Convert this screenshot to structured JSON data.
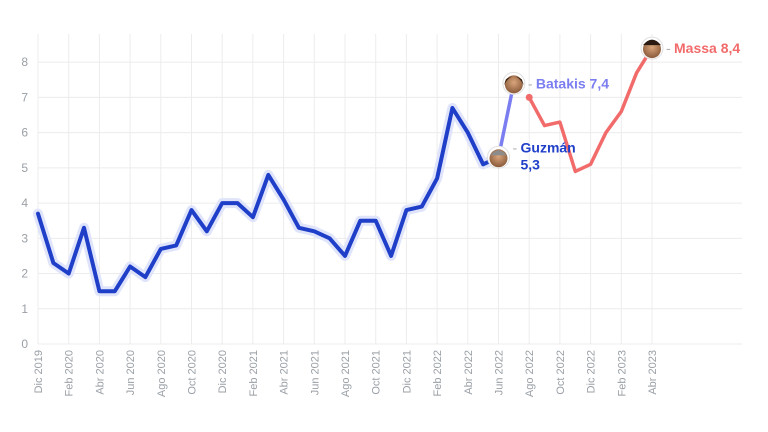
{
  "chart_data": {
    "type": "line",
    "title": "",
    "xlabel": "",
    "ylabel": "",
    "ylim": [
      0,
      8.8
    ],
    "yticks": [
      0,
      1,
      2,
      3,
      4,
      5,
      6,
      7,
      8
    ],
    "grid": true,
    "x_labels": [
      "Dic 2019",
      "Feb 2020",
      "Abr 2020",
      "Jun 2020",
      "Ago 2020",
      "Oct 2020",
      "Dic 2020",
      "Feb 2021",
      "Abr 2021",
      "Jun 2021",
      "Ago 2021",
      "Oct 2021",
      "Dic 2021",
      "Feb 2022",
      "Abr 2022",
      "Jun 2022",
      "Ago 2022",
      "Oct 2022",
      "Dic 2022",
      "Feb 2023",
      "Abr 2023"
    ],
    "x_months": [
      "Dic 2019",
      "Ene 2020",
      "Feb 2020",
      "Mar 2020",
      "Abr 2020",
      "May 2020",
      "Jun 2020",
      "Jul 2020",
      "Ago 2020",
      "Sep 2020",
      "Oct 2020",
      "Nov 2020",
      "Dic 2020",
      "Ene 2021",
      "Feb 2021",
      "Mar 2021",
      "Abr 2021",
      "May 2021",
      "Jun 2021",
      "Jul 2021",
      "Ago 2021",
      "Sep 2021",
      "Oct 2021",
      "Nov 2021",
      "Dic 2021",
      "Ene 2022",
      "Feb 2022",
      "Mar 2022",
      "Abr 2022",
      "May 2022",
      "Jun 2022",
      "Jul 2022",
      "Ago 2022",
      "Sep 2022",
      "Oct 2022",
      "Nov 2022",
      "Dic 2022",
      "Ene 2023",
      "Feb 2023",
      "Mar 2023",
      "Abr 2023"
    ],
    "series": [
      {
        "name": "Guzmán",
        "color": "#1f3fc9",
        "x": [
          "Dic 2019",
          "Ene 2020",
          "Feb 2020",
          "Mar 2020",
          "Abr 2020",
          "May 2020",
          "Jun 2020",
          "Jul 2020",
          "Ago 2020",
          "Sep 2020",
          "Oct 2020",
          "Nov 2020",
          "Dic 2020",
          "Ene 2021",
          "Feb 2021",
          "Mar 2021",
          "Abr 2021",
          "May 2021",
          "Jun 2021",
          "Jul 2021",
          "Ago 2021",
          "Sep 2021",
          "Oct 2021",
          "Nov 2021",
          "Dic 2021",
          "Ene 2022",
          "Feb 2022",
          "Mar 2022",
          "Abr 2022",
          "May 2022",
          "Jun 2022"
        ],
        "values": [
          3.7,
          2.3,
          2.0,
          3.3,
          1.5,
          1.5,
          2.2,
          1.9,
          2.7,
          2.8,
          3.8,
          3.2,
          4.0,
          4.0,
          3.6,
          4.8,
          4.1,
          3.3,
          3.2,
          3.0,
          2.5,
          3.5,
          3.5,
          2.5,
          3.8,
          3.9,
          4.7,
          6.7,
          6.0,
          5.1,
          5.3
        ]
      },
      {
        "name": "Batakis",
        "color": "#7b7ef0",
        "x": [
          "Jun 2022",
          "Jul 2022"
        ],
        "values": [
          5.3,
          7.4
        ]
      },
      {
        "name": "Massa",
        "color": "#f26b6b",
        "x": [
          "Ago 2022",
          "Sep 2022",
          "Oct 2022",
          "Nov 2022",
          "Dic 2022",
          "Ene 2023",
          "Feb 2023",
          "Mar 2023",
          "Abr 2023"
        ],
        "values": [
          7.0,
          6.2,
          6.3,
          4.9,
          5.1,
          6.0,
          6.6,
          7.7,
          8.4
        ]
      }
    ],
    "annotations": [
      {
        "name": "Guzmán",
        "value_label": "5,3",
        "color": "#1f3fc9",
        "at_x": "Jun 2022",
        "at_y": 5.3
      },
      {
        "name": "Batakis",
        "value_label": "7,4",
        "color": "#7b7ef0",
        "at_x": "Jul 2022",
        "at_y": 7.4
      },
      {
        "name": "Massa",
        "value_label": "8,4",
        "color": "#f26b6b",
        "at_x": "Abr 2023",
        "at_y": 8.4
      }
    ]
  }
}
